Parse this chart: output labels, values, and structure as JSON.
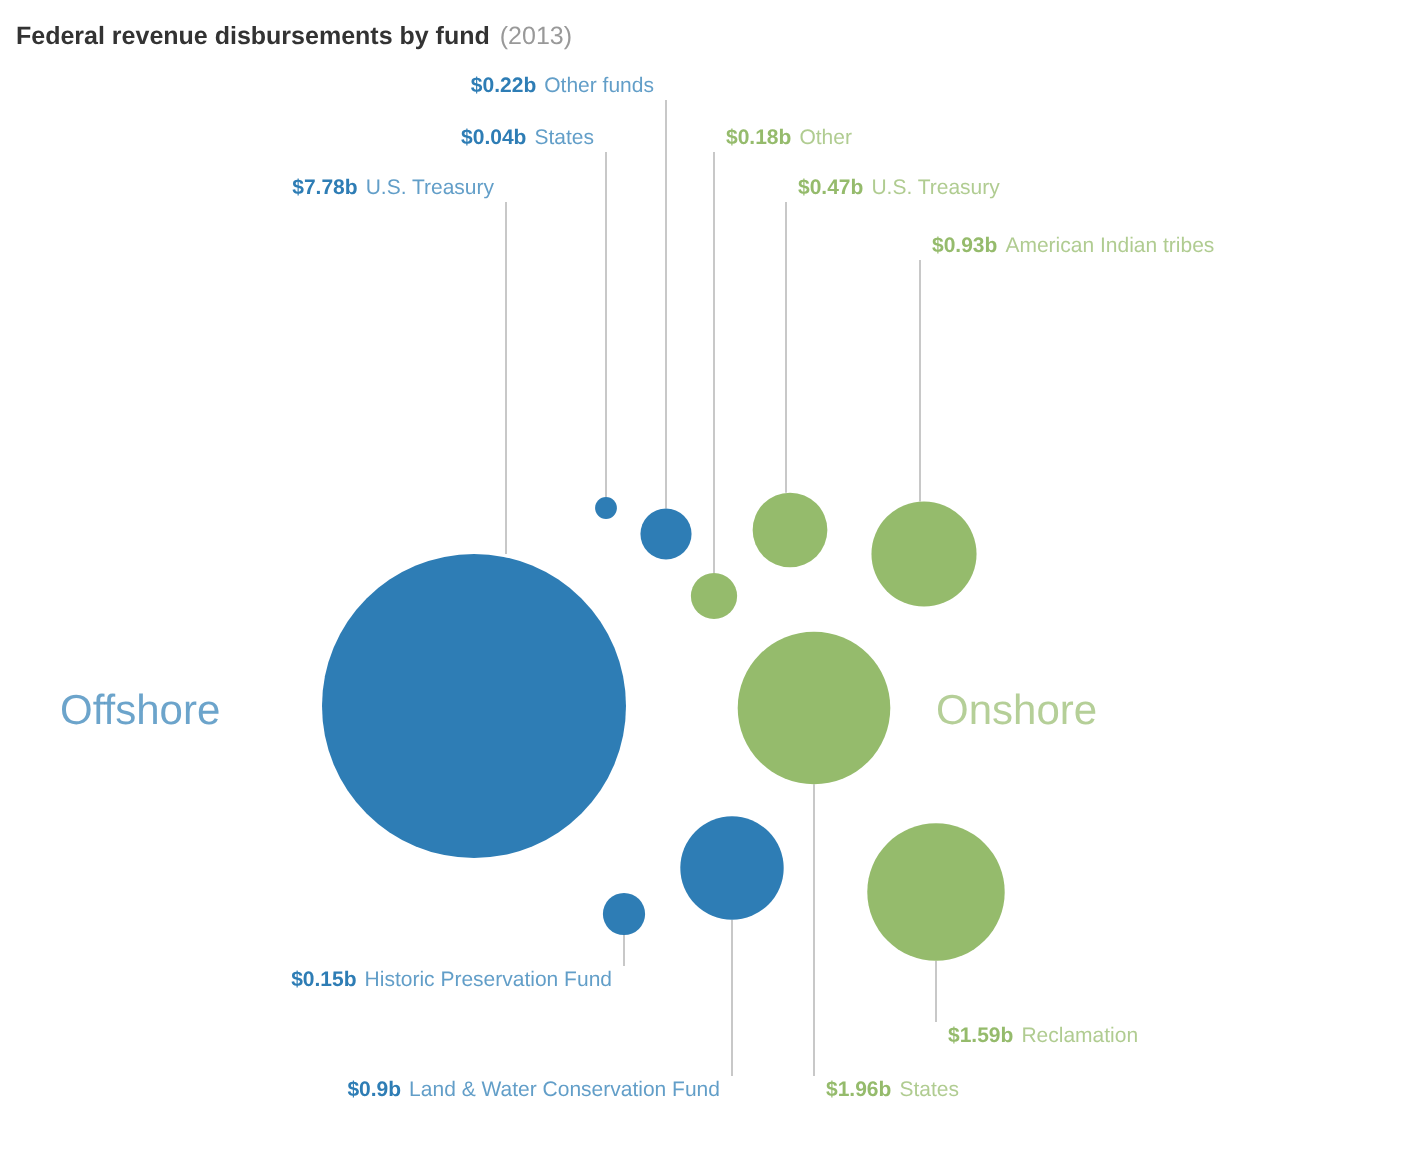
{
  "chart_data": {
    "type": "other",
    "title": "Federal revenue disbursements by fund",
    "subtitle": "(2013)",
    "categories": [
      "U.S. Treasury",
      "States",
      "Other funds",
      "Historic Preservation Fund",
      "Land & Water Conservation Fund",
      "Other",
      "U.S. Treasury",
      "American Indian tribes",
      "Reclamation",
      "States"
    ],
    "series": [
      {
        "name": "Offshore",
        "color": "#2e7db5",
        "values": [
          7.78,
          0.04,
          0.22,
          0.15,
          0.9,
          null,
          null,
          null,
          null,
          null
        ],
        "value_labels": [
          "$7.78b",
          "$0.04b",
          "$0.22b",
          "$0.15b",
          "$0.9b",
          null,
          null,
          null,
          null,
          null
        ]
      },
      {
        "name": "Onshore",
        "color": "#95bb6c",
        "values": [
          null,
          null,
          null,
          null,
          null,
          0.18,
          0.47,
          0.93,
          1.59,
          1.96
        ],
        "value_labels": [
          null,
          null,
          null,
          null,
          null,
          "$0.18b",
          "$0.47b",
          "$0.93b",
          "$1.59b",
          "$1.96b"
        ]
      }
    ]
  }
}
